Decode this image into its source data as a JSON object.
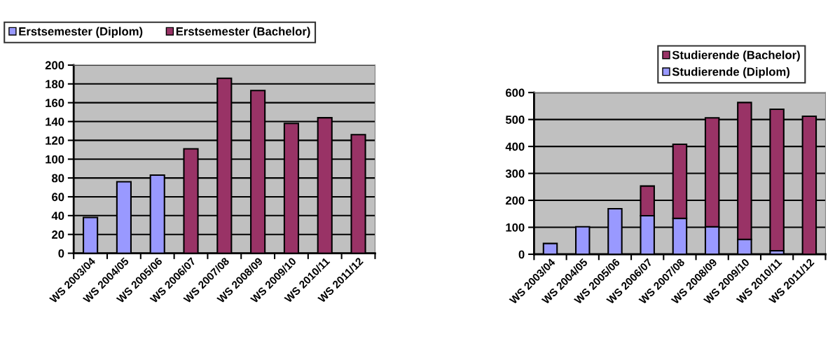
{
  "chart_data": [
    {
      "type": "bar",
      "stacked": true,
      "categories": [
        "WS 2003/04",
        "WS 2004/05",
        "WS 2005/06",
        "WS 2006/07",
        "WS 2007/08",
        "WS 2008/09",
        "WS 2009/10",
        "WS 2010/11",
        "WS 2011/12"
      ],
      "series": [
        {
          "name": "Erstsemester (Diplom)",
          "color": "#9999ff",
          "values": [
            38,
            76,
            83,
            null,
            null,
            null,
            null,
            null,
            null
          ]
        },
        {
          "name": "Erstsemester (Bachelor)",
          "color": "#993366",
          "values": [
            null,
            null,
            null,
            111,
            186,
            173,
            138,
            144,
            126
          ]
        }
      ],
      "ylim": [
        0,
        200
      ],
      "yticks": [
        0,
        20,
        40,
        60,
        80,
        100,
        120,
        140,
        160,
        180,
        200
      ],
      "grid": "y",
      "legend": "top"
    },
    {
      "type": "bar",
      "stacked": true,
      "categories": [
        "WS 2003/04",
        "WS 2004/05",
        "WS 2005/06",
        "WS 2006/07",
        "WS 2007/08",
        "WS 2008/09",
        "WS 2009/10",
        "WS 2010/11",
        "WS 2011/12"
      ],
      "series": [
        {
          "name": "Studierende (Diplom)",
          "color": "#9999ff",
          "values": [
            40,
            102,
            169,
            143,
            133,
            102,
            55,
            13,
            null
          ]
        },
        {
          "name": "Studierende (Bachelor)",
          "color": "#993366",
          "values": [
            null,
            null,
            null,
            110,
            275,
            404,
            508,
            525,
            512
          ]
        }
      ],
      "ylim": [
        0,
        600
      ],
      "yticks": [
        0,
        100,
        200,
        300,
        400,
        500,
        600
      ],
      "grid": "y",
      "legend": "top right"
    }
  ]
}
